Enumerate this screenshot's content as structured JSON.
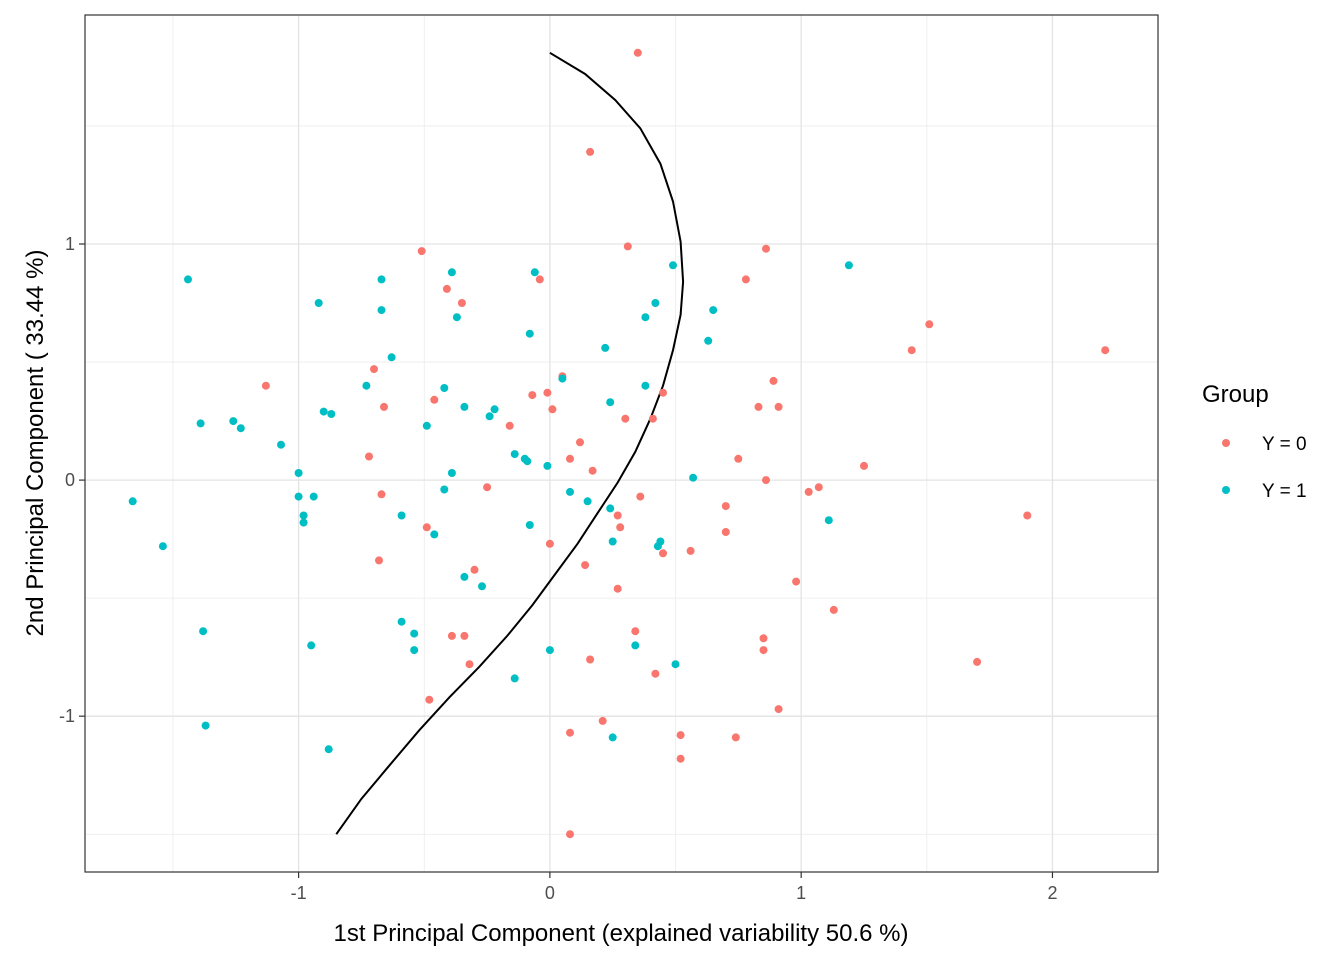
{
  "chart_data": {
    "type": "scatter",
    "xlabel": "1st Principal Component (explained variability 50.6 %)",
    "ylabel": "2nd Principal Component ( 33.44 %)",
    "xlim": [
      -1.85,
      2.42
    ],
    "ylim": [
      -1.66,
      1.97
    ],
    "x_ticks": [
      -1,
      0,
      1,
      2
    ],
    "y_ticks": [
      -1,
      0,
      1
    ],
    "x_tick_labels": [
      "-1",
      "0",
      "1",
      "2"
    ],
    "y_tick_labels": [
      "-1",
      "0",
      "1"
    ],
    "grid": true,
    "legend": {
      "title": "Group",
      "position": "right"
    },
    "series": [
      {
        "name": "Y = 0",
        "color": "#F8766D",
        "points": [
          [
            0.35,
            1.81
          ],
          [
            0.16,
            1.39
          ],
          [
            0.31,
            0.99
          ],
          [
            -0.51,
            0.97
          ],
          [
            0.86,
            0.98
          ],
          [
            -0.04,
            0.85
          ],
          [
            0.78,
            0.85
          ],
          [
            -0.41,
            0.81
          ],
          [
            -0.35,
            0.75
          ],
          [
            1.51,
            0.66
          ],
          [
            1.44,
            0.55
          ],
          [
            2.21,
            0.55
          ],
          [
            -0.7,
            0.47
          ],
          [
            -1.13,
            0.4
          ],
          [
            0.89,
            0.42
          ],
          [
            0.05,
            0.44
          ],
          [
            -0.01,
            0.37
          ],
          [
            -0.07,
            0.36
          ],
          [
            0.45,
            0.37
          ],
          [
            -0.46,
            0.34
          ],
          [
            -0.66,
            0.31
          ],
          [
            0.83,
            0.31
          ],
          [
            0.91,
            0.31
          ],
          [
            0.01,
            0.3
          ],
          [
            0.3,
            0.26
          ],
          [
            0.41,
            0.26
          ],
          [
            -0.16,
            0.23
          ],
          [
            0.12,
            0.16
          ],
          [
            -0.72,
            0.1
          ],
          [
            0.08,
            0.09
          ],
          [
            0.75,
            0.09
          ],
          [
            1.25,
            0.06
          ],
          [
            0.17,
            0.04
          ],
          [
            -0.25,
            -0.03
          ],
          [
            0.86,
            0.0
          ],
          [
            1.07,
            -0.03
          ],
          [
            -0.67,
            -0.06
          ],
          [
            1.03,
            -0.05
          ],
          [
            0.36,
            -0.07
          ],
          [
            0.7,
            -0.11
          ],
          [
            1.9,
            -0.15
          ],
          [
            0.27,
            -0.15
          ],
          [
            0.28,
            -0.2
          ],
          [
            -0.49,
            -0.2
          ],
          [
            0.7,
            -0.22
          ],
          [
            0.0,
            -0.27
          ],
          [
            0.56,
            -0.3
          ],
          [
            0.45,
            -0.31
          ],
          [
            -0.68,
            -0.34
          ],
          [
            0.14,
            -0.36
          ],
          [
            -0.3,
            -0.38
          ],
          [
            0.98,
            -0.43
          ],
          [
            0.27,
            -0.46
          ],
          [
            1.13,
            -0.55
          ],
          [
            0.34,
            -0.64
          ],
          [
            -0.39,
            -0.66
          ],
          [
            -0.34,
            -0.66
          ],
          [
            0.85,
            -0.67
          ],
          [
            0.85,
            -0.72
          ],
          [
            0.16,
            -0.76
          ],
          [
            1.7,
            -0.77
          ],
          [
            -0.32,
            -0.78
          ],
          [
            0.42,
            -0.82
          ],
          [
            -0.48,
            -0.93
          ],
          [
            0.91,
            -0.97
          ],
          [
            0.21,
            -1.02
          ],
          [
            0.08,
            -1.07
          ],
          [
            0.52,
            -1.08
          ],
          [
            0.74,
            -1.09
          ],
          [
            0.52,
            -1.18
          ],
          [
            0.08,
            -1.5
          ]
        ]
      },
      {
        "name": "Y = 1",
        "color": "#00BFC4",
        "points": [
          [
            -1.44,
            0.85
          ],
          [
            -0.67,
            0.85
          ],
          [
            -0.06,
            0.88
          ],
          [
            -0.39,
            0.88
          ],
          [
            0.49,
            0.91
          ],
          [
            1.19,
            0.91
          ],
          [
            -0.92,
            0.75
          ],
          [
            0.42,
            0.75
          ],
          [
            -0.67,
            0.72
          ],
          [
            0.65,
            0.72
          ],
          [
            -0.37,
            0.69
          ],
          [
            0.38,
            0.69
          ],
          [
            -0.08,
            0.62
          ],
          [
            0.63,
            0.59
          ],
          [
            0.22,
            0.56
          ],
          [
            -0.63,
            0.52
          ],
          [
            0.05,
            0.43
          ],
          [
            -0.73,
            0.4
          ],
          [
            0.38,
            0.4
          ],
          [
            -0.42,
            0.39
          ],
          [
            0.24,
            0.33
          ],
          [
            -0.34,
            0.31
          ],
          [
            -0.22,
            0.3
          ],
          [
            -0.9,
            0.29
          ],
          [
            -0.87,
            0.28
          ],
          [
            -0.24,
            0.27
          ],
          [
            -1.26,
            0.25
          ],
          [
            -1.39,
            0.24
          ],
          [
            -1.23,
            0.22
          ],
          [
            -0.49,
            0.23
          ],
          [
            -1.07,
            0.15
          ],
          [
            -0.14,
            0.11
          ],
          [
            -0.1,
            0.09
          ],
          [
            -0.09,
            0.08
          ],
          [
            -0.01,
            0.06
          ],
          [
            -0.39,
            0.03
          ],
          [
            -1.0,
            0.03
          ],
          [
            0.57,
            0.01
          ],
          [
            -0.42,
            -0.04
          ],
          [
            0.08,
            -0.05
          ],
          [
            -1.0,
            -0.07
          ],
          [
            -0.94,
            -0.07
          ],
          [
            -1.66,
            -0.09
          ],
          [
            0.15,
            -0.09
          ],
          [
            0.24,
            -0.12
          ],
          [
            -0.98,
            -0.15
          ],
          [
            1.11,
            -0.17
          ],
          [
            -0.59,
            -0.15
          ],
          [
            -0.98,
            -0.18
          ],
          [
            -0.08,
            -0.19
          ],
          [
            -0.46,
            -0.23
          ],
          [
            0.44,
            -0.26
          ],
          [
            0.25,
            -0.26
          ],
          [
            0.43,
            -0.28
          ],
          [
            -1.54,
            -0.28
          ],
          [
            -0.34,
            -0.41
          ],
          [
            -0.27,
            -0.45
          ],
          [
            -0.59,
            -0.6
          ],
          [
            -0.54,
            -0.65
          ],
          [
            -1.38,
            -0.64
          ],
          [
            -0.95,
            -0.7
          ],
          [
            0.34,
            -0.7
          ],
          [
            0.0,
            -0.72
          ],
          [
            -0.54,
            -0.72
          ],
          [
            0.5,
            -0.78
          ],
          [
            -0.14,
            -0.84
          ],
          [
            -1.37,
            -1.04
          ],
          [
            0.25,
            -1.09
          ],
          [
            -0.88,
            -1.14
          ]
        ]
      }
    ],
    "curve": {
      "color": "#000000",
      "points": [
        [
          0.0,
          1.81
        ],
        [
          0.14,
          1.72
        ],
        [
          0.26,
          1.61
        ],
        [
          0.36,
          1.49
        ],
        [
          0.44,
          1.34
        ],
        [
          0.49,
          1.18
        ],
        [
          0.52,
          1.01
        ],
        [
          0.53,
          0.84
        ],
        [
          0.52,
          0.7
        ],
        [
          0.49,
          0.55
        ],
        [
          0.45,
          0.4
        ],
        [
          0.4,
          0.26
        ],
        [
          0.34,
          0.12
        ],
        [
          0.27,
          -0.01
        ],
        [
          0.19,
          -0.14
        ],
        [
          0.11,
          -0.27
        ],
        [
          0.02,
          -0.4
        ],
        [
          -0.07,
          -0.53
        ],
        [
          -0.17,
          -0.66
        ],
        [
          -0.28,
          -0.79
        ],
        [
          -0.4,
          -0.92
        ],
        [
          -0.52,
          -1.06
        ],
        [
          -0.64,
          -1.21
        ],
        [
          -0.75,
          -1.35
        ],
        [
          -0.85,
          -1.5
        ]
      ]
    }
  }
}
